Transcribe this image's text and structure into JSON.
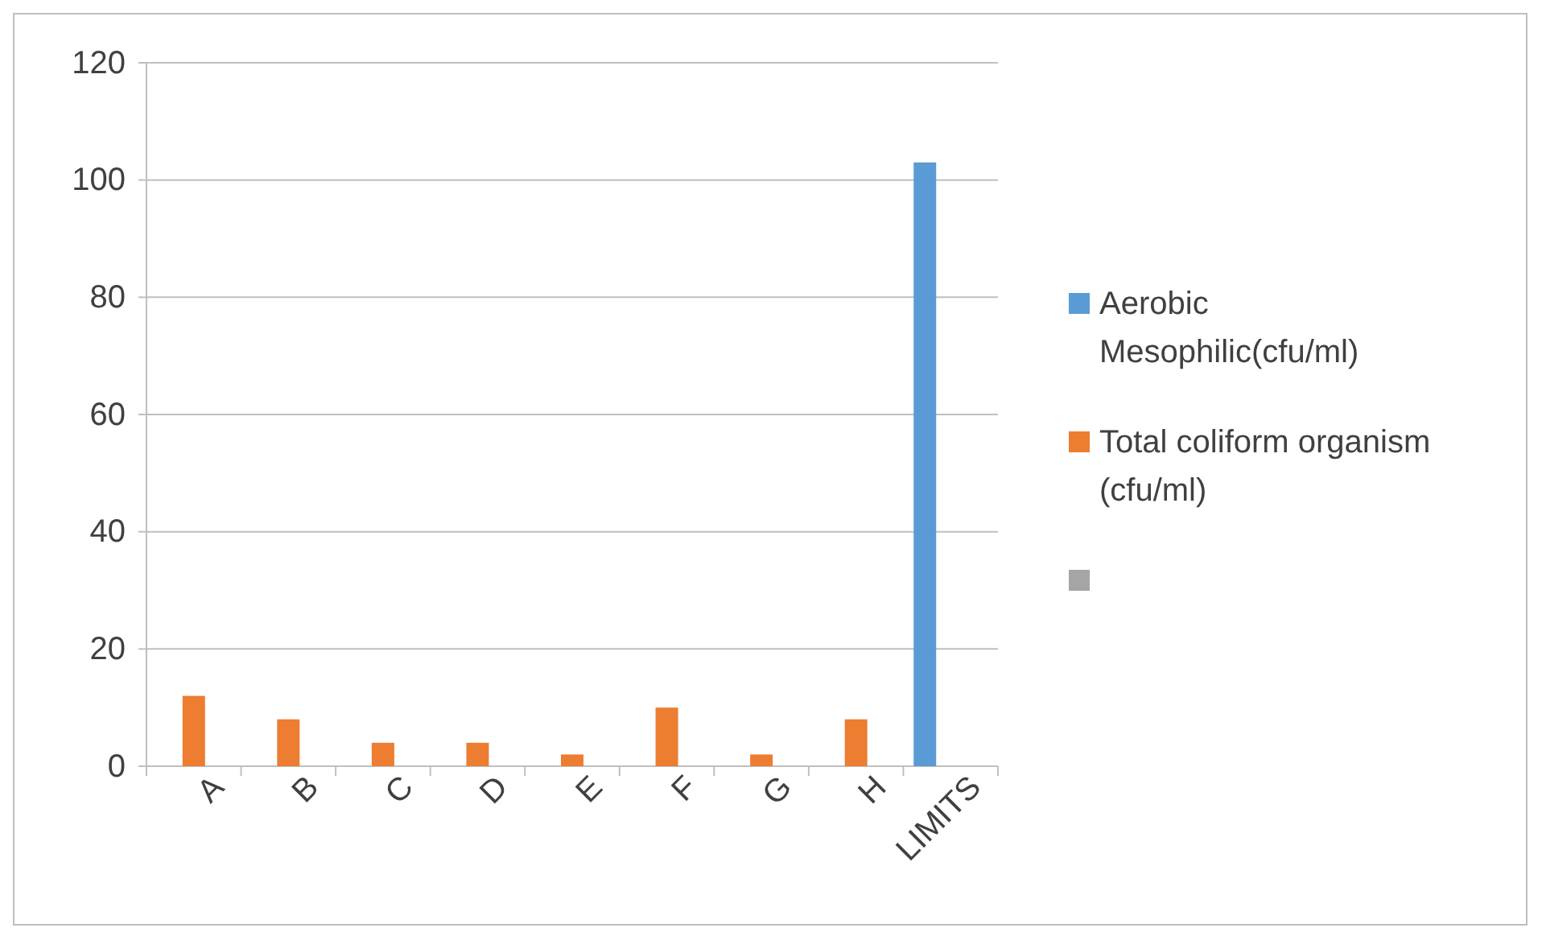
{
  "chart_data": {
    "type": "bar",
    "categories": [
      "A",
      "B",
      "C",
      "D",
      "E",
      "F",
      "G",
      "H",
      "LIMITS"
    ],
    "series": [
      {
        "name": "Aerobic Mesophilic(cfu/ml)",
        "color": "#5b9bd5",
        "values": [
          null,
          null,
          null,
          null,
          null,
          null,
          null,
          null,
          103
        ]
      },
      {
        "name": "Total coliform organism (cfu/ml)",
        "color": "#ed7d31",
        "values": [
          12,
          8,
          4,
          4,
          2,
          10,
          2,
          8,
          null
        ]
      },
      {
        "color": "#a5a5a5",
        "values": [
          null,
          null,
          null,
          null,
          null,
          null,
          null,
          null,
          null
        ]
      }
    ],
    "ylim": [
      0,
      120
    ],
    "yticks": [
      0,
      20,
      40,
      60,
      80,
      100,
      120
    ],
    "grid": "y",
    "legend": "right"
  }
}
